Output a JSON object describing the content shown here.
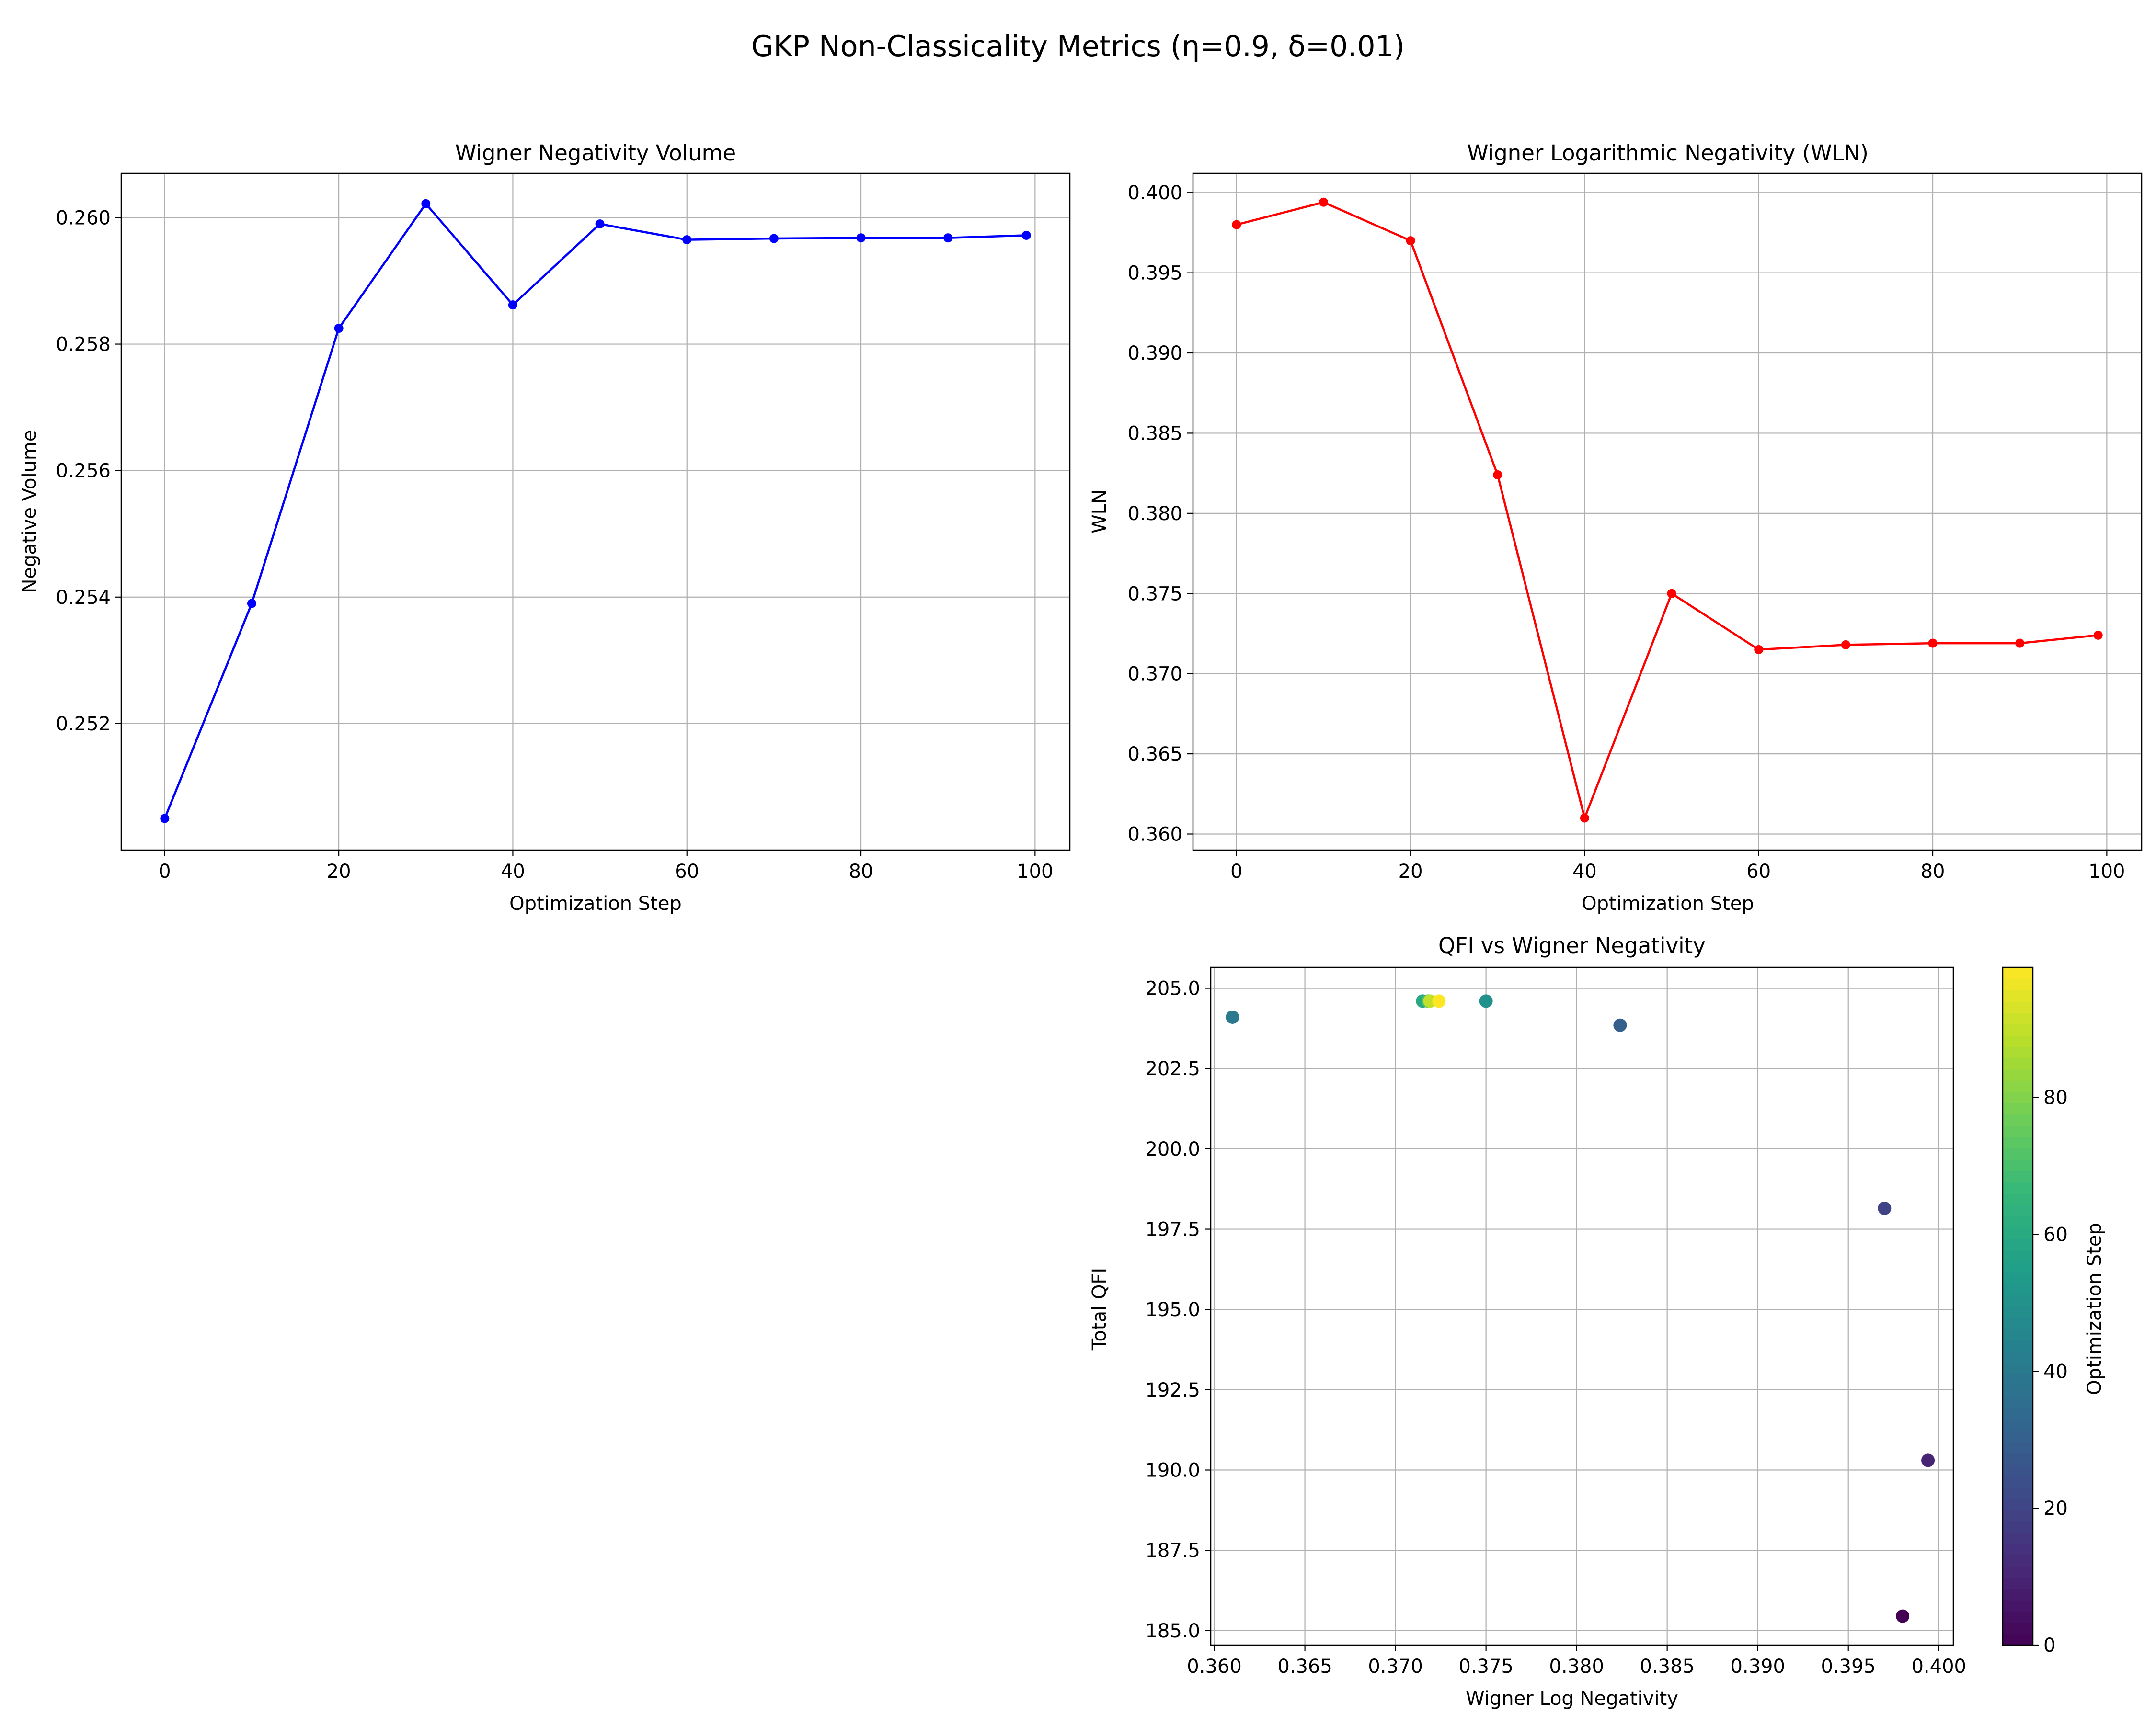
{
  "figure": {
    "title": "GKP Non-Classicality Metrics (η=0.9, δ=0.01)"
  },
  "chart_data": [
    {
      "type": "line",
      "title": "Wigner Negativity Volume",
      "xlabel": "Optimization Step",
      "ylabel": "Negative Volume",
      "xlim": [
        -5,
        104
      ],
      "ylim": [
        0.25,
        0.2607
      ],
      "xticks": [
        "0",
        "20",
        "40",
        "60",
        "80",
        "100"
      ],
      "yticks": [
        "0.252",
        "0.254",
        "0.256",
        "0.258",
        "0.260"
      ],
      "grid": true,
      "color": "#0000ff",
      "x": [
        0,
        10,
        20,
        30,
        40,
        50,
        60,
        70,
        80,
        90,
        99
      ],
      "y": [
        0.2505,
        0.2539,
        0.25825,
        0.26022,
        0.25862,
        0.2599,
        0.25965,
        0.25967,
        0.25968,
        0.25968,
        0.25972
      ]
    },
    {
      "type": "line",
      "title": "Wigner Logarithmic Negativity (WLN)",
      "xlabel": "Optimization Step",
      "ylabel": "WLN",
      "xlim": [
        -5,
        104
      ],
      "ylim": [
        0.359,
        0.4012
      ],
      "xticks": [
        "0",
        "20",
        "40",
        "60",
        "80",
        "100"
      ],
      "yticks": [
        "0.360",
        "0.365",
        "0.370",
        "0.375",
        "0.380",
        "0.385",
        "0.390",
        "0.395",
        "0.400"
      ],
      "grid": true,
      "color": "#ff0000",
      "x": [
        0,
        10,
        20,
        30,
        40,
        50,
        60,
        70,
        80,
        90,
        99
      ],
      "y": [
        0.398,
        0.3994,
        0.397,
        0.3824,
        0.361,
        0.375,
        0.3715,
        0.3718,
        0.3719,
        0.3719,
        0.3724
      ]
    },
    {
      "type": "scatter",
      "title": "QFI vs Wigner Negativity",
      "xlabel": "Wigner Log Negativity",
      "ylabel": "Total QFI",
      "xlim": [
        0.3598,
        0.4008
      ],
      "ylim": [
        184.55,
        205.65
      ],
      "xticks": [
        "0.360",
        "0.365",
        "0.370",
        "0.375",
        "0.380",
        "0.385",
        "0.390",
        "0.395",
        "0.400"
      ],
      "yticks": [
        "185.0",
        "187.5",
        "190.0",
        "192.5",
        "195.0",
        "197.5",
        "200.0",
        "202.5",
        "205.0"
      ],
      "grid": true,
      "colormap": "viridis",
      "colorbar": {
        "label": "Optimization Step",
        "range": [
          0,
          99
        ],
        "ticks": [
          "0",
          "20",
          "40",
          "60",
          "80"
        ]
      },
      "points": [
        {
          "x": 0.398,
          "y": 185.45,
          "step": 0
        },
        {
          "x": 0.3994,
          "y": 190.3,
          "step": 10
        },
        {
          "x": 0.397,
          "y": 198.15,
          "step": 20
        },
        {
          "x": 0.3824,
          "y": 203.85,
          "step": 30
        },
        {
          "x": 0.361,
          "y": 204.1,
          "step": 40
        },
        {
          "x": 0.375,
          "y": 204.6,
          "step": 50
        },
        {
          "x": 0.3715,
          "y": 204.6,
          "step": 60
        },
        {
          "x": 0.3718,
          "y": 204.6,
          "step": 70
        },
        {
          "x": 0.3719,
          "y": 204.6,
          "step": 80
        },
        {
          "x": 0.3719,
          "y": 204.6,
          "step": 90
        },
        {
          "x": 0.3724,
          "y": 204.6,
          "step": 99
        }
      ]
    }
  ]
}
